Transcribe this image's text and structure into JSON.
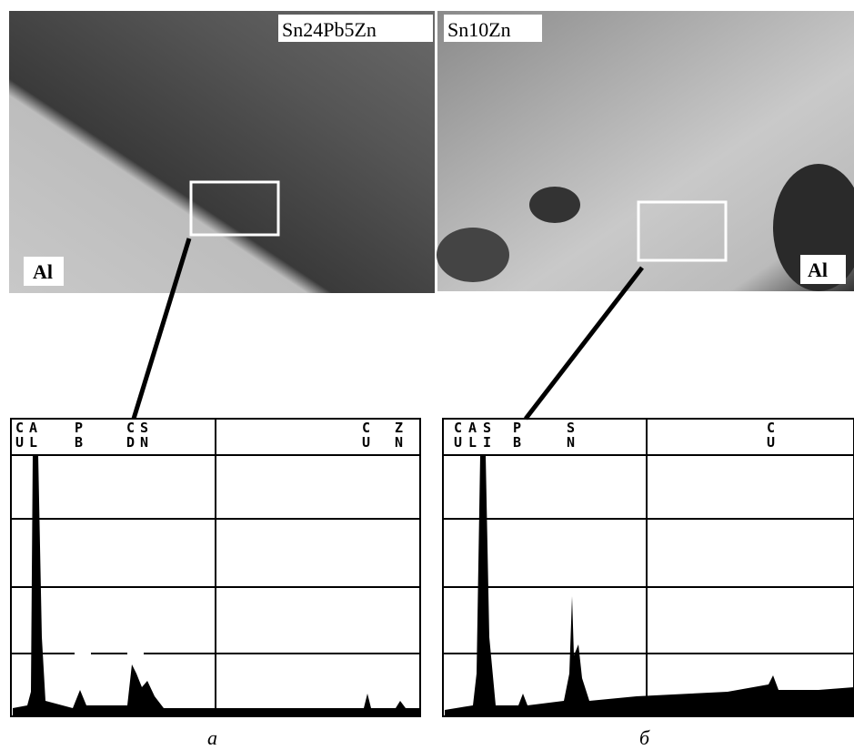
{
  "panels": [
    {
      "sample": "Sn24Pb5Zn",
      "substrate": "Al",
      "caption": "а",
      "elements": [
        {
          "top": "C",
          "bottom": "U"
        },
        {
          "top": "A",
          "bottom": "L"
        },
        {
          "top": "P",
          "bottom": "B"
        },
        {
          "top": "C",
          "bottom": "D"
        },
        {
          "top": "S",
          "bottom": "N"
        },
        {
          "top": "C",
          "bottom": "U"
        },
        {
          "top": "Z",
          "bottom": "N"
        }
      ]
    },
    {
      "sample": "Sn10Zn",
      "substrate": "Al",
      "caption": "б",
      "elements": [
        {
          "top": "C",
          "bottom": "U"
        },
        {
          "top": "A",
          "bottom": "L"
        },
        {
          "top": "S",
          "bottom": "I"
        },
        {
          "top": "P",
          "bottom": "B"
        },
        {
          "top": "S",
          "bottom": "N"
        },
        {
          "top": "C",
          "bottom": "U"
        }
      ]
    }
  ]
}
